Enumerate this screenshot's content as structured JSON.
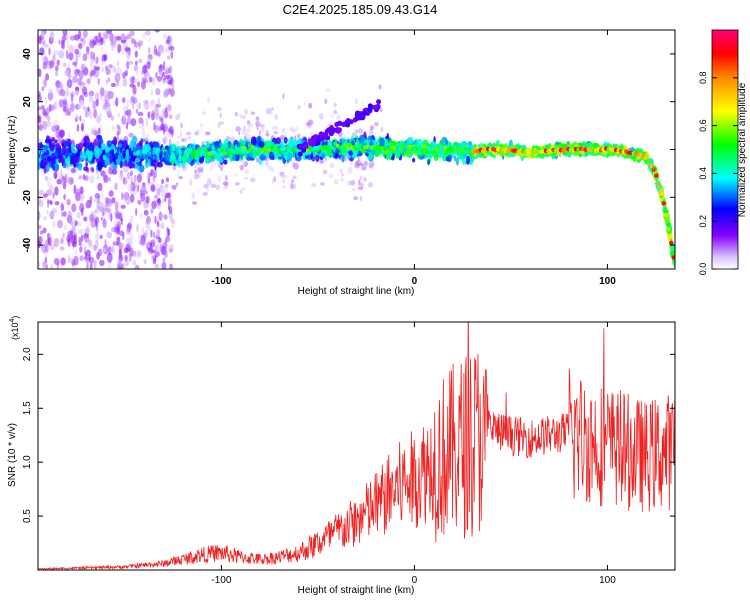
{
  "title": "C2E4.2025.185.09.43.G14",
  "chart_data": [
    {
      "type": "heatmap",
      "xlabel": "Height of straight line (km)",
      "ylabel": "Frequency (Hz)",
      "xlim": [
        -195,
        135
      ],
      "ylim": [
        -50,
        50
      ],
      "xticks": [
        -100,
        0,
        100
      ],
      "xtick_labels": [
        "-100",
        "0",
        "100"
      ],
      "yticks": [
        -40,
        -20,
        0,
        20,
        40
      ],
      "ytick_labels": [
        "-40",
        "-20",
        "0",
        "20",
        "40"
      ],
      "colorbar": {
        "label": "Normalized spectral amplitude",
        "range": [
          0,
          1
        ],
        "ticks": [
          0.0,
          0.2,
          0.4,
          0.6,
          0.8
        ],
        "tick_labels": [
          "0.0",
          "0.2",
          "0.4",
          "0.6",
          "0.8"
        ],
        "colors": [
          "#ffffff",
          "#8800ff",
          "#0000ff",
          "#00ffff",
          "#00ff00",
          "#ffff00",
          "#ff8800",
          "#ff0000",
          "#ff0077"
        ]
      },
      "ridge": {
        "x": [
          -195,
          -150,
          -120,
          -100,
          -80,
          -60,
          -40,
          -20,
          0,
          20,
          30,
          40,
          60,
          80,
          100,
          110,
          120,
          125,
          130,
          135
        ],
        "y": [
          -2,
          -2,
          -2,
          -1,
          0,
          0,
          1,
          1,
          0,
          0,
          -1,
          0,
          -1,
          0,
          0,
          -1,
          -3,
          -10,
          -25,
          -48
        ]
      }
    },
    {
      "type": "line",
      "xlabel": "Height of straight line (km)",
      "ylabel": "SNR (10 * v/v)",
      "yscale_label": "(x10",
      "yscale_exponent": "4",
      "xlim": [
        -195,
        135
      ],
      "ylim": [
        0,
        2.3
      ],
      "xticks": [
        -100,
        0,
        100
      ],
      "xtick_labels": [
        "-100",
        "0",
        "100"
      ],
      "yticks": [
        0.5,
        1.0,
        1.5,
        2.0
      ],
      "ytick_labels": [
        "0.5",
        "1.0",
        "1.5",
        "2.0"
      ],
      "line_color": "#ee2222",
      "series": [
        {
          "x": [
            -195,
            -170,
            -150,
            -130,
            -120,
            -110,
            -100,
            -90,
            -80,
            -70,
            -60,
            -50,
            -40,
            -30,
            -20,
            -10,
            0,
            10,
            20,
            25,
            30,
            35,
            40,
            50,
            60,
            70,
            80,
            90,
            100,
            110,
            120,
            130,
            135
          ],
          "y": [
            0.01,
            0.02,
            0.03,
            0.06,
            0.1,
            0.14,
            0.16,
            0.12,
            0.1,
            0.12,
            0.16,
            0.25,
            0.35,
            0.45,
            0.6,
            0.75,
            0.85,
            1.0,
            1.1,
            1.15,
            1.2,
            1.25,
            1.3,
            1.25,
            1.22,
            1.25,
            1.28,
            1.2,
            1.15,
            1.1,
            1.05,
            1.1,
            1.1
          ]
        }
      ]
    }
  ]
}
